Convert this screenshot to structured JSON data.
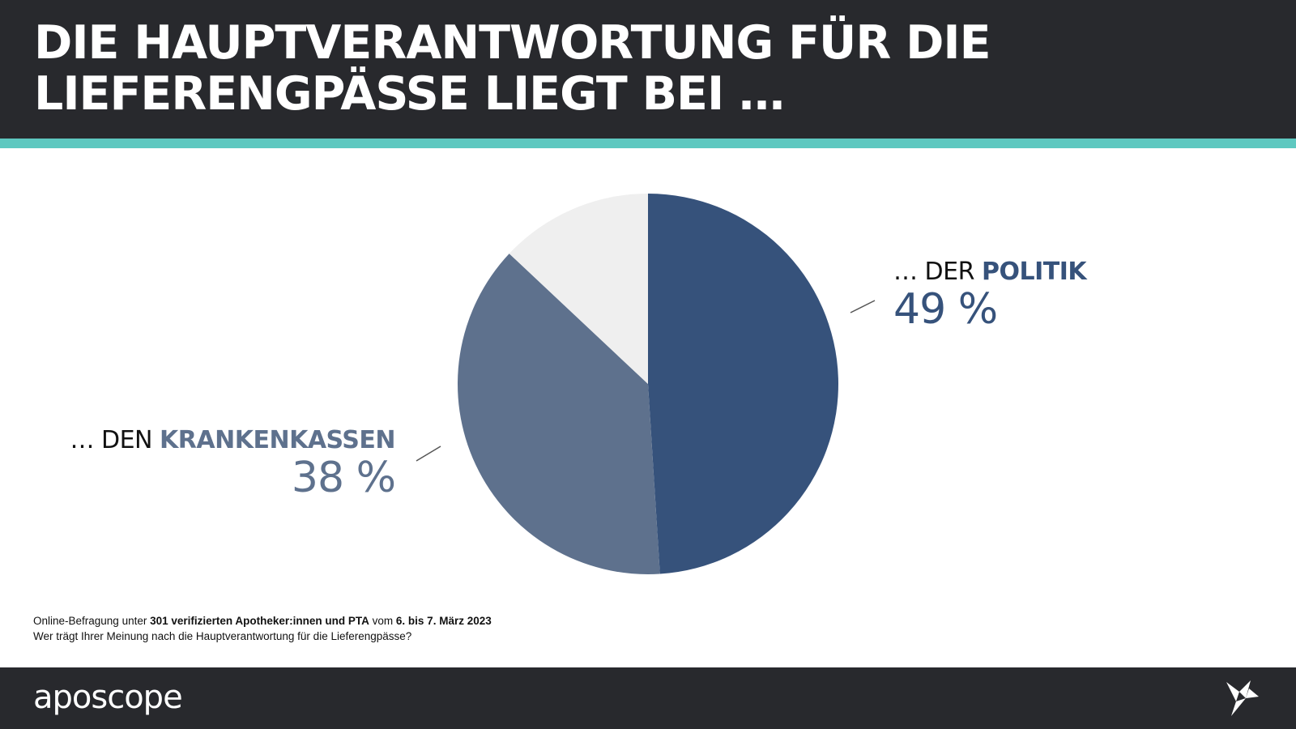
{
  "header": {
    "title": "DIE HAUPTVERANTWORTUNG FÜR DIE\nLIEFERENGPÄSSE LIEGT BEI …"
  },
  "colors": {
    "header_bg": "#28292d",
    "accent": "#5ec8c0",
    "politik": "#36527b",
    "krankenkassen": "#5e718d",
    "other": "#efefef"
  },
  "chart_data": {
    "type": "pie",
    "title": "DIE HAUPTVERANTWORTUNG FÜR DIE LIEFERENGPÄSSE LIEGT BEI …",
    "slices": [
      {
        "prefix": "… DER ",
        "label": "POLITIK",
        "value": 49,
        "value_label": "49 %",
        "color": "#36527b"
      },
      {
        "prefix": "… DEN ",
        "label": "KRANKENKASSEN",
        "value": 38,
        "value_label": "38 %",
        "color": "#5e718d"
      },
      {
        "prefix": "",
        "label": "",
        "value": 13,
        "value_label": "",
        "color": "#efefef"
      }
    ]
  },
  "footnote": {
    "line1_a": "Online-Befragung unter ",
    "line1_b": "301 verifizierten Apotheker:innen und PTA",
    "line1_c": " vom ",
    "line1_d": "6. bis 7. März 2023",
    "line2": "Wer trägt Ihrer Meinung nach die Hauptverantwortung für die Lieferengpässe?"
  },
  "footer": {
    "brand": "aposcope",
    "logo_icon": "origami-bird-icon"
  }
}
